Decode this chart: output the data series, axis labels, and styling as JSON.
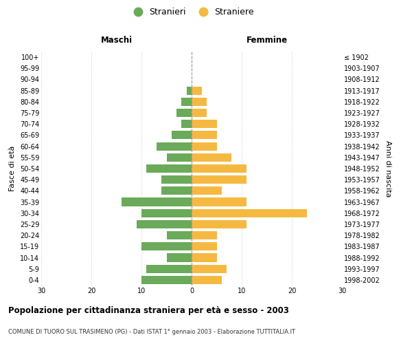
{
  "age_groups": [
    "0-4",
    "5-9",
    "10-14",
    "15-19",
    "20-24",
    "25-29",
    "30-34",
    "35-39",
    "40-44",
    "45-49",
    "50-54",
    "55-59",
    "60-64",
    "65-69",
    "70-74",
    "75-79",
    "80-84",
    "85-89",
    "90-94",
    "95-99",
    "100+"
  ],
  "birth_years": [
    "1998-2002",
    "1993-1997",
    "1988-1992",
    "1983-1987",
    "1978-1982",
    "1973-1977",
    "1968-1972",
    "1963-1967",
    "1958-1962",
    "1953-1957",
    "1948-1952",
    "1943-1947",
    "1938-1942",
    "1933-1937",
    "1928-1932",
    "1923-1927",
    "1918-1922",
    "1913-1917",
    "1908-1912",
    "1903-1907",
    "≤ 1902"
  ],
  "males": [
    10,
    9,
    5,
    10,
    5,
    11,
    10,
    14,
    6,
    6,
    9,
    5,
    7,
    4,
    2,
    3,
    2,
    1,
    0,
    0,
    0
  ],
  "females": [
    6,
    7,
    5,
    5,
    5,
    11,
    23,
    11,
    6,
    11,
    11,
    8,
    5,
    5,
    5,
    3,
    3,
    2,
    0,
    0,
    0
  ],
  "male_color": "#6aaa5a",
  "female_color": "#f5b942",
  "title": "Popolazione per cittadinanza straniera per età e sesso - 2003",
  "subtitle": "COMUNE DI TUORO SUL TRASIMENO (PG) - Dati ISTAT 1° gennaio 2003 - Elaborazione TUTTITALIA.IT",
  "legend_male": "Stranieri",
  "legend_female": "Straniere",
  "xlabel_left": "Maschi",
  "xlabel_right": "Femmine",
  "ylabel_left": "Fasce di età",
  "ylabel_right": "Anni di nascita",
  "xlim": 30,
  "background_color": "#ffffff",
  "grid_color": "#cccccc"
}
